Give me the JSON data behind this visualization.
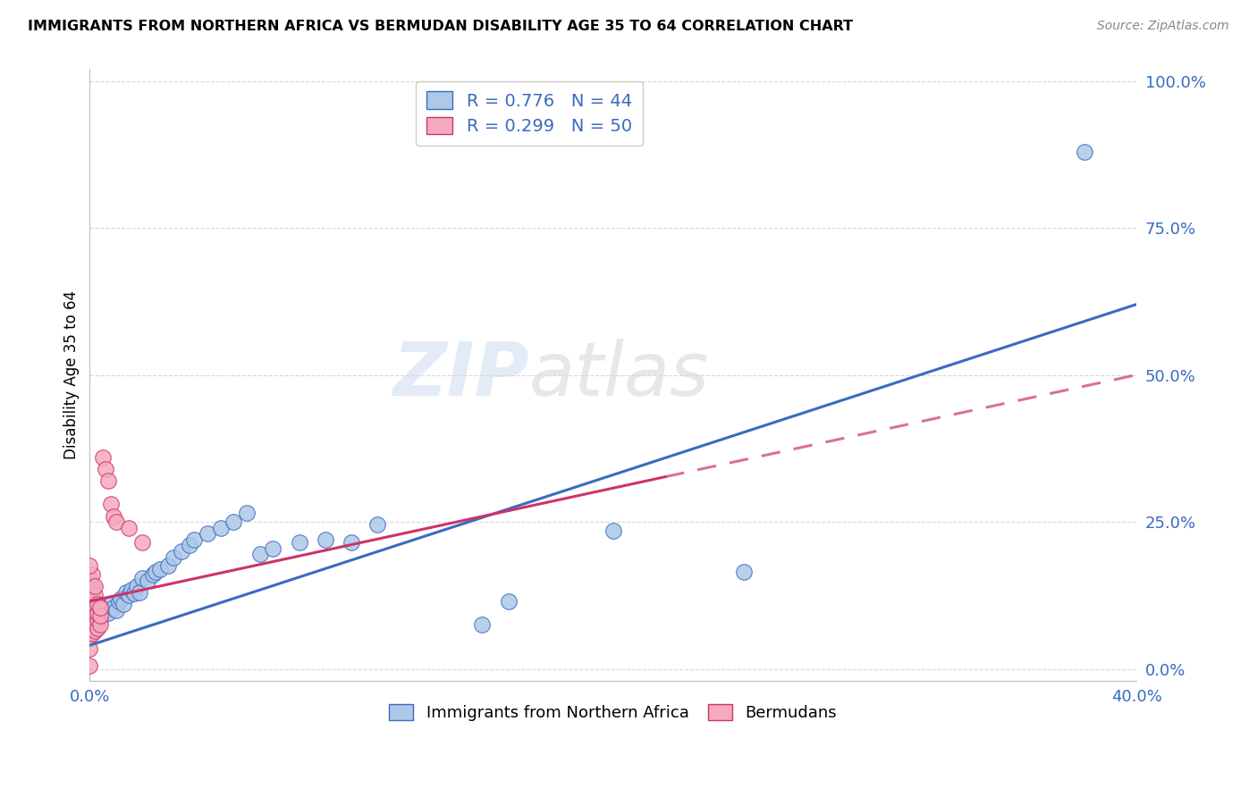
{
  "title": "IMMIGRANTS FROM NORTHERN AFRICA VS BERMUDAN DISABILITY AGE 35 TO 64 CORRELATION CHART",
  "source": "Source: ZipAtlas.com",
  "ylabel": "Disability Age 35 to 64",
  "watermark": "ZIPatlas",
  "blue_R": 0.776,
  "blue_N": 44,
  "pink_R": 0.299,
  "pink_N": 50,
  "blue_color": "#adc8e8",
  "pink_color": "#f5aabf",
  "blue_line_color": "#3a6bbf",
  "pink_line_color": "#cc3366",
  "blue_scatter": [
    [
      0.001,
      0.075
    ],
    [
      0.002,
      0.095
    ],
    [
      0.003,
      0.09
    ],
    [
      0.004,
      0.085
    ],
    [
      0.005,
      0.105
    ],
    [
      0.006,
      0.1
    ],
    [
      0.007,
      0.095
    ],
    [
      0.008,
      0.11
    ],
    [
      0.009,
      0.105
    ],
    [
      0.01,
      0.1
    ],
    [
      0.011,
      0.115
    ],
    [
      0.012,
      0.12
    ],
    [
      0.013,
      0.11
    ],
    [
      0.014,
      0.13
    ],
    [
      0.015,
      0.125
    ],
    [
      0.016,
      0.135
    ],
    [
      0.017,
      0.128
    ],
    [
      0.018,
      0.14
    ],
    [
      0.019,
      0.13
    ],
    [
      0.02,
      0.155
    ],
    [
      0.022,
      0.15
    ],
    [
      0.024,
      0.16
    ],
    [
      0.025,
      0.165
    ],
    [
      0.027,
      0.17
    ],
    [
      0.03,
      0.175
    ],
    [
      0.032,
      0.19
    ],
    [
      0.035,
      0.2
    ],
    [
      0.038,
      0.21
    ],
    [
      0.04,
      0.22
    ],
    [
      0.045,
      0.23
    ],
    [
      0.05,
      0.24
    ],
    [
      0.055,
      0.25
    ],
    [
      0.06,
      0.265
    ],
    [
      0.065,
      0.195
    ],
    [
      0.07,
      0.205
    ],
    [
      0.08,
      0.215
    ],
    [
      0.09,
      0.22
    ],
    [
      0.1,
      0.215
    ],
    [
      0.11,
      0.245
    ],
    [
      0.15,
      0.075
    ],
    [
      0.16,
      0.115
    ],
    [
      0.2,
      0.235
    ],
    [
      0.25,
      0.165
    ],
    [
      0.38,
      0.88
    ]
  ],
  "pink_scatter": [
    [
      0.0,
      0.055
    ],
    [
      0.0,
      0.07
    ],
    [
      0.0,
      0.08
    ],
    [
      0.0,
      0.085
    ],
    [
      0.0,
      0.095
    ],
    [
      0.0,
      0.1
    ],
    [
      0.0,
      0.11
    ],
    [
      0.0,
      0.115
    ],
    [
      0.0,
      0.12
    ],
    [
      0.0,
      0.125
    ],
    [
      0.0,
      0.13
    ],
    [
      0.0,
      0.135
    ],
    [
      0.0,
      0.14
    ],
    [
      0.0,
      0.145
    ],
    [
      0.0,
      0.15
    ],
    [
      0.0,
      0.155
    ],
    [
      0.001,
      0.06
    ],
    [
      0.001,
      0.07
    ],
    [
      0.001,
      0.08
    ],
    [
      0.001,
      0.09
    ],
    [
      0.001,
      0.1
    ],
    [
      0.001,
      0.11
    ],
    [
      0.001,
      0.12
    ],
    [
      0.001,
      0.13
    ],
    [
      0.001,
      0.14
    ],
    [
      0.001,
      0.16
    ],
    [
      0.002,
      0.065
    ],
    [
      0.002,
      0.08
    ],
    [
      0.002,
      0.095
    ],
    [
      0.002,
      0.11
    ],
    [
      0.002,
      0.125
    ],
    [
      0.002,
      0.14
    ],
    [
      0.003,
      0.07
    ],
    [
      0.003,
      0.085
    ],
    [
      0.003,
      0.095
    ],
    [
      0.003,
      0.11
    ],
    [
      0.004,
      0.075
    ],
    [
      0.004,
      0.09
    ],
    [
      0.004,
      0.105
    ],
    [
      0.005,
      0.36
    ],
    [
      0.006,
      0.34
    ],
    [
      0.007,
      0.32
    ],
    [
      0.008,
      0.28
    ],
    [
      0.009,
      0.26
    ],
    [
      0.01,
      0.25
    ],
    [
      0.015,
      0.24
    ],
    [
      0.02,
      0.215
    ],
    [
      0.0,
      0.035
    ],
    [
      0.0,
      0.005
    ],
    [
      0.0,
      0.175
    ]
  ],
  "xlim": [
    0.0,
    0.4
  ],
  "ylim": [
    -0.02,
    1.02
  ],
  "xticks": [
    0.0,
    0.08,
    0.16,
    0.24,
    0.32,
    0.4
  ],
  "xtick_labels": [
    "0.0%",
    "",
    "",
    "",
    "",
    "40.0%"
  ],
  "ytick_labels_right": [
    "0.0%",
    "25.0%",
    "50.0%",
    "75.0%",
    "100.0%"
  ],
  "ytick_positions": [
    0.0,
    0.25,
    0.5,
    0.75,
    1.0
  ],
  "blue_line_x": [
    0.0,
    0.4
  ],
  "blue_line_y": [
    0.04,
    0.62
  ],
  "pink_line_x": [
    0.0,
    0.4
  ],
  "pink_line_y": [
    0.115,
    0.5
  ],
  "grid_color": "#d8d8d8",
  "background_color": "#ffffff",
  "legend_blue_label": "R = 0.776   N = 44",
  "legend_pink_label": "R = 0.299   N = 50",
  "bottom_legend_blue": "Immigrants from Northern Africa",
  "bottom_legend_pink": "Bermudans"
}
